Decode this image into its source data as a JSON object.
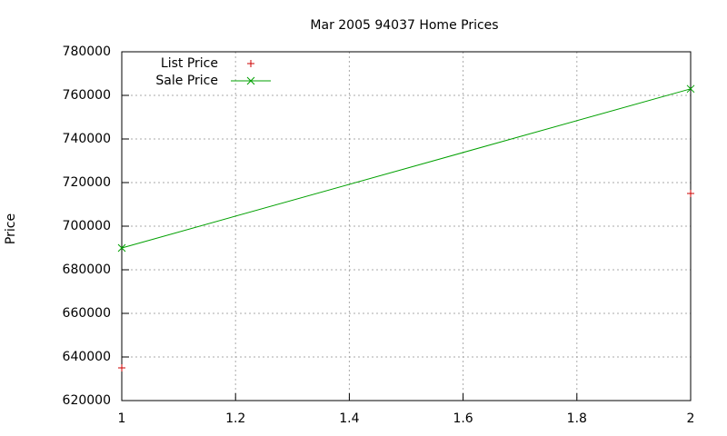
{
  "chart_data": {
    "type": "line",
    "title": "Mar 2005 94037 Home Prices",
    "ylabel": "Price",
    "x": [
      1,
      2
    ],
    "series": [
      {
        "name": "List Price",
        "color": "#cc0000",
        "style": "points",
        "marker": "+",
        "values": [
          635000,
          715000
        ]
      },
      {
        "name": "Sale Price",
        "color": "#00a000",
        "style": "linespoints",
        "marker": "x",
        "values": [
          690000,
          763000
        ]
      }
    ],
    "xlim": [
      1,
      2
    ],
    "xticks": [
      1,
      1.2,
      1.4,
      1.6,
      1.8,
      2
    ],
    "ylim": [
      620000,
      780000
    ],
    "yticks": [
      620000,
      640000,
      660000,
      680000,
      700000,
      720000,
      740000,
      760000,
      780000
    ],
    "grid": true,
    "legend": "top-left"
  }
}
